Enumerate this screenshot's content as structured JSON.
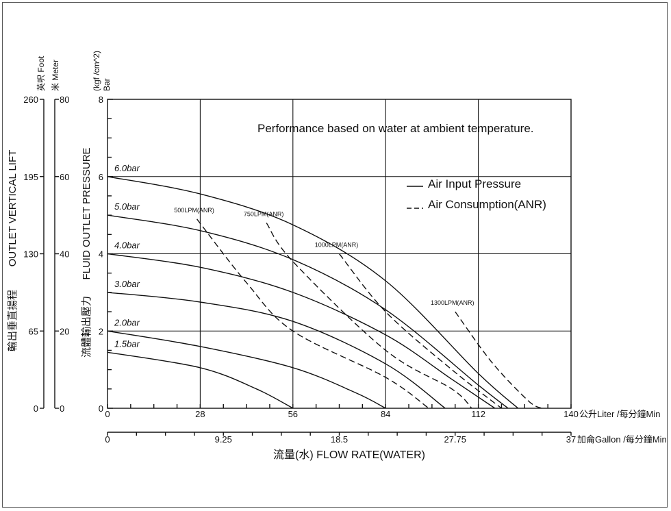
{
  "chart_data": {
    "type": "line",
    "annotation": "Performance based on water at ambient temperature.",
    "legend": {
      "placement": "top-right",
      "items": [
        {
          "label": "Air Input Pressure",
          "style": "solid"
        },
        {
          "label": "Air Consumption(ANR)",
          "style": "dashed"
        }
      ]
    },
    "x_axis": {
      "ticks": [
        0,
        28,
        56,
        84,
        112,
        140
      ],
      "unit_label": "公升Liter /每分鐘Min",
      "range": [
        0,
        140
      ]
    },
    "x_axis_secondary": {
      "ticks": [
        "0",
        "9.25",
        "18.5",
        "27.75",
        "37"
      ],
      "unit_label": "加侖Gallon /每分鐘Min",
      "range": [
        0,
        37
      ]
    },
    "xlabel": "流量(水) FLOW RATE(WATER)",
    "y_axis": {
      "ticks": [
        0,
        2,
        4,
        6,
        8
      ],
      "unit_top": "(kgf /cm^2)",
      "unit_bottom": "Bar",
      "range": [
        0,
        8
      ],
      "label_en": "FLUID OUTLET PRESSURE",
      "label_zh": "流體輸出壓力"
    },
    "lift_axes": {
      "foot_header": "英呎 Foot",
      "meter_header": "米 Meter",
      "foot_ticks": [
        "260",
        "195",
        "130",
        "65",
        "0"
      ],
      "meter_ticks": [
        "80",
        "60",
        "40",
        "20",
        "0"
      ],
      "label_en": "OUTLET VERTICAL LIFT",
      "label_zh": "輸出垂直揚程"
    },
    "grid": true,
    "series": [
      {
        "name": "6.0bar",
        "style": "solid",
        "points": [
          [
            0,
            6.0
          ],
          [
            28,
            5.55
          ],
          [
            56,
            4.75
          ],
          [
            84,
            3.3
          ],
          [
            112,
            0.9
          ],
          [
            124,
            0
          ]
        ]
      },
      {
        "name": "5.0bar",
        "style": "solid",
        "points": [
          [
            0,
            5.0
          ],
          [
            28,
            4.6
          ],
          [
            56,
            3.85
          ],
          [
            84,
            2.55
          ],
          [
            112,
            0.6
          ],
          [
            121,
            0
          ]
        ]
      },
      {
        "name": "4.0bar",
        "style": "solid",
        "points": [
          [
            0,
            4.0
          ],
          [
            28,
            3.65
          ],
          [
            56,
            3.0
          ],
          [
            84,
            1.9
          ],
          [
            104,
            0.75
          ],
          [
            117,
            0
          ]
        ]
      },
      {
        "name": "3.0bar",
        "style": "solid",
        "points": [
          [
            0,
            3.0
          ],
          [
            28,
            2.75
          ],
          [
            56,
            2.25
          ],
          [
            84,
            1.15
          ],
          [
            102,
            0
          ]
        ]
      },
      {
        "name": "2.0bar",
        "style": "solid",
        "points": [
          [
            0,
            2.0
          ],
          [
            28,
            1.6
          ],
          [
            56,
            1.05
          ],
          [
            75,
            0.4
          ],
          [
            84,
            0
          ]
        ]
      },
      {
        "name": "1.5bar",
        "style": "solid",
        "points": [
          [
            0,
            1.45
          ],
          [
            28,
            1.05
          ],
          [
            45,
            0.5
          ],
          [
            56,
            0
          ]
        ]
      }
    ],
    "consumption_series": [
      {
        "name": "500LPM(ANR)",
        "style": "dashed",
        "points": [
          [
            27,
            4.9
          ],
          [
            42,
            3.25
          ],
          [
            56,
            2.0
          ],
          [
            84,
            0.8
          ],
          [
            97,
            0
          ]
        ]
      },
      {
        "name": "750LPM(ANR)",
        "style": "dashed",
        "points": [
          [
            48,
            4.8
          ],
          [
            56,
            3.8
          ],
          [
            84,
            1.5
          ],
          [
            104,
            0.5
          ],
          [
            110,
            0
          ]
        ]
      },
      {
        "name": "1000LPM(ANR)",
        "style": "dashed",
        "points": [
          [
            70,
            4.0
          ],
          [
            84,
            2.5
          ],
          [
            104,
            1.0
          ],
          [
            119,
            0
          ]
        ]
      },
      {
        "name": "1300LPM(ANR)",
        "style": "dashed",
        "points": [
          [
            105,
            2.5
          ],
          [
            116,
            1.2
          ],
          [
            127,
            0.2
          ],
          [
            131,
            0
          ]
        ]
      }
    ]
  }
}
